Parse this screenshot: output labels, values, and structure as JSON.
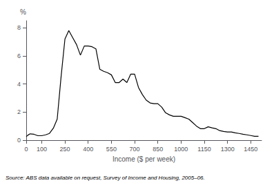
{
  "chart_data": {
    "type": "line",
    "x": [
      0,
      10,
      25,
      50,
      75,
      100,
      125,
      150,
      175,
      200,
      225,
      250,
      275,
      300,
      325,
      350,
      375,
      400,
      425,
      450,
      475,
      500,
      525,
      550,
      575,
      600,
      625,
      650,
      675,
      700,
      725,
      750,
      775,
      800,
      825,
      850,
      875,
      900,
      925,
      950,
      975,
      1000,
      1025,
      1050,
      1075,
      1100,
      1125,
      1150,
      1175,
      1200,
      1225,
      1250,
      1275,
      1300,
      1325,
      1350,
      1375,
      1400,
      1425,
      1450,
      1475,
      1500
    ],
    "values": [
      0.25,
      0.35,
      0.45,
      0.42,
      0.32,
      0.32,
      0.38,
      0.48,
      0.85,
      1.5,
      4.5,
      7.2,
      7.8,
      7.3,
      6.8,
      6.05,
      6.7,
      6.7,
      6.65,
      6.5,
      5.05,
      4.9,
      4.8,
      4.65,
      4.1,
      4.1,
      4.35,
      4.1,
      4.7,
      4.7,
      3.75,
      3.25,
      2.85,
      2.65,
      2.6,
      2.6,
      2.35,
      1.95,
      1.8,
      1.7,
      1.7,
      1.7,
      1.6,
      1.5,
      1.25,
      1.0,
      0.82,
      0.82,
      0.95,
      0.88,
      0.82,
      0.68,
      0.62,
      0.58,
      0.58,
      0.52,
      0.48,
      0.42,
      0.38,
      0.33,
      0.28,
      0.28
    ],
    "xlabel": "Income ($ per week)",
    "ylabel": "%",
    "annotations": [
      "Source: ABS data available on request, Survey of Income and Housing, 2005–06."
    ],
    "xlim": [
      0,
      1520
    ],
    "ylim": [
      0,
      8.5
    ],
    "xticks": [
      0,
      100,
      250,
      400,
      550,
      700,
      850,
      1000,
      1150,
      1300,
      1450
    ],
    "yticks": [
      0,
      2,
      4,
      6,
      8
    ],
    "color": "#000000",
    "grid": false
  }
}
